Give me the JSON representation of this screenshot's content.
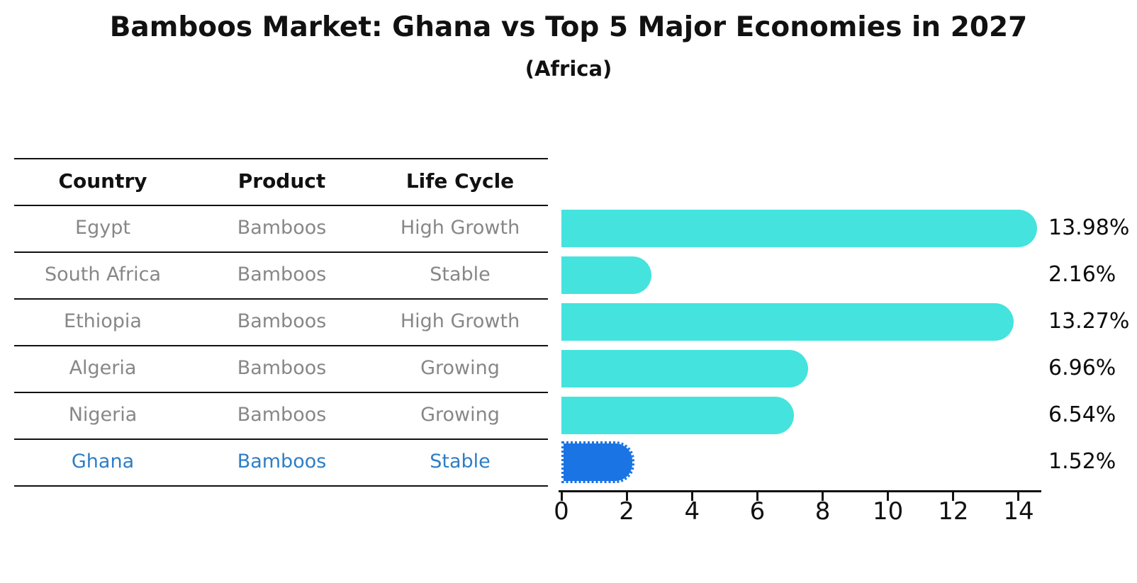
{
  "title": "Bamboos Market: Ghana vs Top 5 Major Economies in 2027",
  "subtitle": "(Africa)",
  "table": {
    "headers": [
      "Country",
      "Product",
      "Life Cycle"
    ],
    "rows": [
      {
        "country": "Egypt",
        "product": "Bamboos",
        "life_cycle": "High Growth",
        "highlighted": false
      },
      {
        "country": "South Africa",
        "product": "Bamboos",
        "life_cycle": "Stable",
        "highlighted": false
      },
      {
        "country": "Ethiopia",
        "product": "Bamboos",
        "life_cycle": "High Growth",
        "highlighted": false
      },
      {
        "country": "Algeria",
        "product": "Bamboos",
        "life_cycle": "Growing",
        "highlighted": false
      },
      {
        "country": "Nigeria",
        "product": "Bamboos",
        "life_cycle": "Growing",
        "highlighted": false
      },
      {
        "country": "Ghana",
        "product": "Bamboos",
        "life_cycle": "Stable",
        "highlighted": true
      }
    ]
  },
  "chart_data": {
    "type": "bar",
    "orientation": "horizontal",
    "title": "Bamboos Market: Ghana vs Top 5 Major Economies in 2027 (Africa)",
    "xlabel": "",
    "ylabel": "",
    "categories": [
      "Egypt",
      "South Africa",
      "Ethiopia",
      "Algeria",
      "Nigeria",
      "Ghana"
    ],
    "values": [
      13.98,
      2.16,
      13.27,
      6.96,
      6.54,
      1.52
    ],
    "value_labels": [
      "13.98%",
      "2.16%",
      "13.27%",
      "6.96%",
      "6.54%",
      "1.52%"
    ],
    "x_ticks": [
      0,
      2,
      4,
      6,
      8,
      10,
      12,
      14
    ],
    "xlim": [
      0,
      14.7
    ],
    "grid": false,
    "legend": false,
    "bar_color": "#45e3dd",
    "highlight_index": 5,
    "highlight_bar_color": "#1b74e4",
    "highlight_text_color": "#2e7ec6",
    "axis_color": "#111111",
    "label_color": "#0b0b0b",
    "table_text_color": "#878787"
  }
}
